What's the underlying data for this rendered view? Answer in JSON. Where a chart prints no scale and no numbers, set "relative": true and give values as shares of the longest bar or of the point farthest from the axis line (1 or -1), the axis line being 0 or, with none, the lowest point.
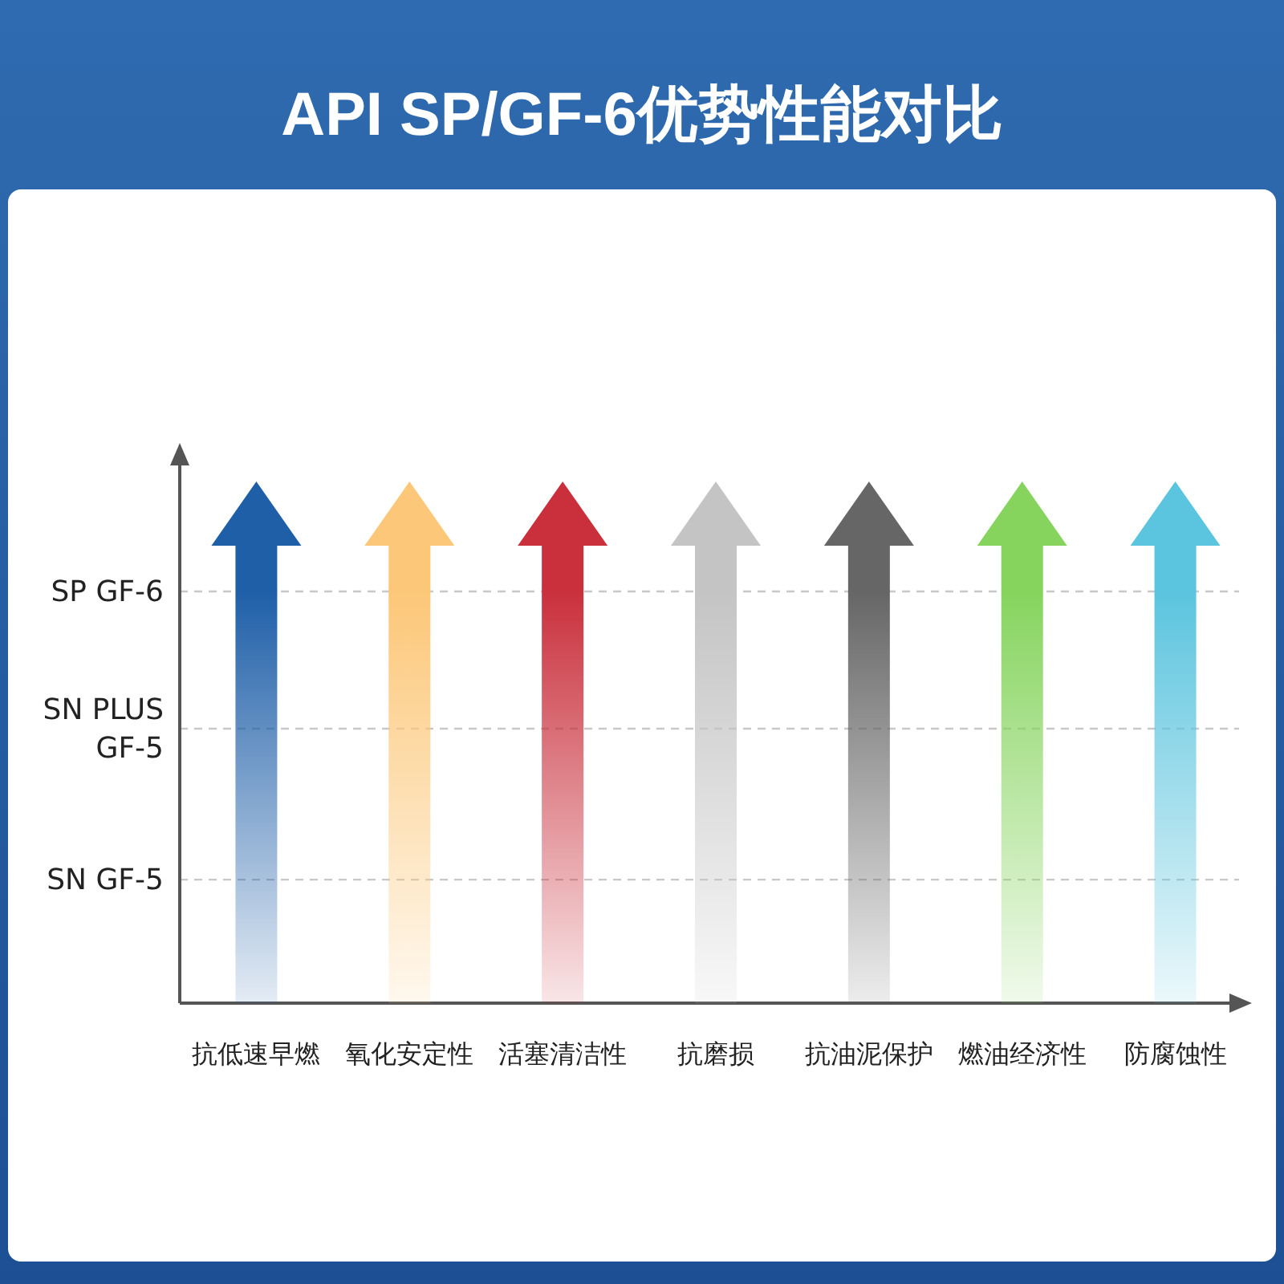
{
  "chart_data": {
    "type": "bar",
    "title": "API SP/GF-6优势性能对比",
    "relative": true,
    "categories": [
      "抗低速早燃",
      "氧化安定性",
      "活塞清洁性",
      "抗磨损",
      "抗油泥保护",
      "燃油经济性",
      "防腐蚀性"
    ],
    "values": [
      1,
      1,
      1,
      1,
      1,
      1,
      1
    ],
    "colors": [
      "#1f5fa8",
      "#fcc778",
      "#c9303c",
      "#c4c4c4",
      "#666666",
      "#86d45e",
      "#5bc4de"
    ],
    "ref_lines": [
      {
        "axis": "y",
        "value": 0.9,
        "label": "SP GF-6",
        "line_style": "dashed",
        "color": "#c8c8c8"
      },
      {
        "axis": "y",
        "value": 0.6,
        "label": "SN PLUS GF-5",
        "line_style": "dashed",
        "color": "#c8c8c8"
      },
      {
        "axis": "y",
        "value": 0.27,
        "label": "SN GF-5",
        "line_style": "dashed",
        "color": "#c8c8c8"
      }
    ]
  }
}
